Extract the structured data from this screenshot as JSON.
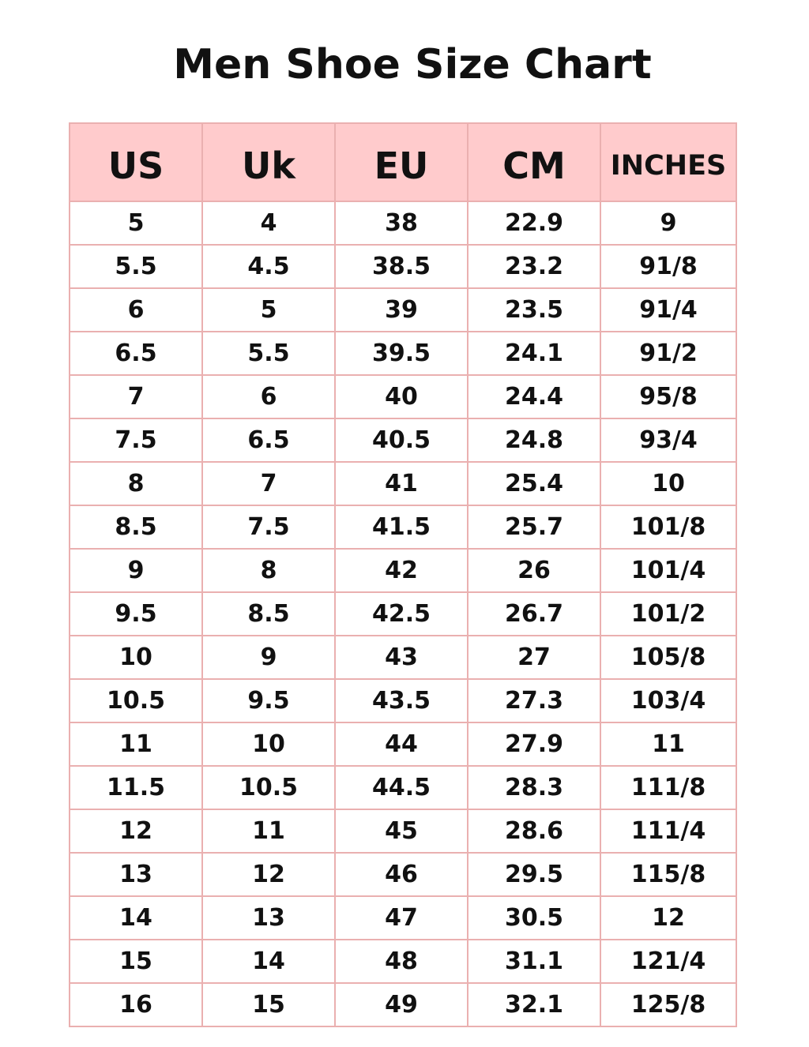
{
  "title": "Men Shoe Size Chart",
  "colors": {
    "header_bg": "#ffcbcc",
    "border": "#eab0b0"
  },
  "headers": [
    "US",
    "Uk",
    "EU",
    "CM",
    "INCHES"
  ],
  "rows": [
    [
      "5",
      "4",
      "38",
      "22.9",
      "9"
    ],
    [
      "5.5",
      "4.5",
      "38.5",
      "23.2",
      "91/8"
    ],
    [
      "6",
      "5",
      "39",
      "23.5",
      "91/4"
    ],
    [
      "6.5",
      "5.5",
      "39.5",
      "24.1",
      "91/2"
    ],
    [
      "7",
      "6",
      "40",
      "24.4",
      "95/8"
    ],
    [
      "7.5",
      "6.5",
      "40.5",
      "24.8",
      "93/4"
    ],
    [
      "8",
      "7",
      "41",
      "25.4",
      "10"
    ],
    [
      "8.5",
      "7.5",
      "41.5",
      "25.7",
      "101/8"
    ],
    [
      "9",
      "8",
      "42",
      "26",
      "101/4"
    ],
    [
      "9.5",
      "8.5",
      "42.5",
      "26.7",
      "101/2"
    ],
    [
      "10",
      "9",
      "43",
      "27",
      "105/8"
    ],
    [
      "10.5",
      "9.5",
      "43.5",
      "27.3",
      "103/4"
    ],
    [
      "11",
      "10",
      "44",
      "27.9",
      "11"
    ],
    [
      "11.5",
      "10.5",
      "44.5",
      "28.3",
      "111/8"
    ],
    [
      "12",
      "11",
      "45",
      "28.6",
      "111/4"
    ],
    [
      "13",
      "12",
      "46",
      "29.5",
      "115/8"
    ],
    [
      "14",
      "13",
      "47",
      "30.5",
      "12"
    ],
    [
      "15",
      "14",
      "48",
      "31.1",
      "121/4"
    ],
    [
      "16",
      "15",
      "49",
      "32.1",
      "125/8"
    ]
  ]
}
